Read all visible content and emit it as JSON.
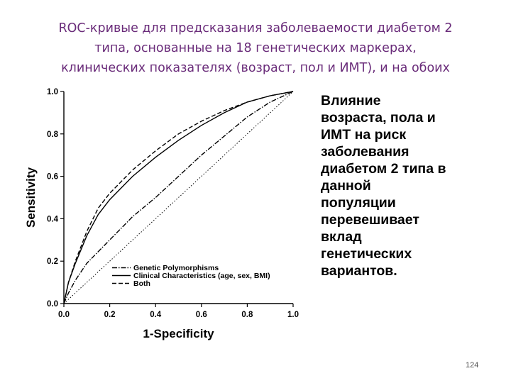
{
  "title": {
    "lines": [
      "ROC-кривые для предсказания заболеваемости диабетом 2",
      "типа, основанные на 18 генетических маркерах,",
      "клинических показателях (возраст, пол и ИМТ), и на обоих"
    ]
  },
  "side_text": {
    "lines": [
      "Влияние",
      "возраста, пола и",
      "ИМТ на риск",
      "заболевания",
      "диабетом 2 типа в",
      "данной",
      "популяции",
      "перевешивает",
      "вклад",
      "генетических",
      "вариантов."
    ]
  },
  "page_number": "124",
  "chart_data": {
    "type": "line",
    "xlabel": "1-Specificity",
    "ylabel": "Sensitivity",
    "xlim": [
      0,
      1
    ],
    "ylim": [
      0,
      1
    ],
    "x_ticks": [
      "0.0",
      "0.2",
      "0.4",
      "0.6",
      "0.8",
      "1.0"
    ],
    "y_ticks": [
      "0.0",
      "0.2",
      "0.4",
      "0.6",
      "0.8",
      "1.0"
    ],
    "grid": false,
    "legend_position": "bottom-left",
    "reference_line": true,
    "series": [
      {
        "name": "Genetic Polymorphisms",
        "style": "dash-dot",
        "x": [
          0,
          0.02,
          0.05,
          0.1,
          0.2,
          0.3,
          0.4,
          0.5,
          0.6,
          0.7,
          0.8,
          0.9,
          1.0
        ],
        "y": [
          0,
          0.05,
          0.11,
          0.19,
          0.3,
          0.41,
          0.5,
          0.6,
          0.7,
          0.79,
          0.88,
          0.95,
          1.0
        ]
      },
      {
        "name": "Clinical Characteristics (age, sex, BMI)",
        "style": "solid",
        "x": [
          0,
          0.02,
          0.05,
          0.1,
          0.15,
          0.2,
          0.3,
          0.4,
          0.5,
          0.6,
          0.7,
          0.8,
          0.9,
          1.0
        ],
        "y": [
          0,
          0.1,
          0.19,
          0.32,
          0.42,
          0.49,
          0.6,
          0.69,
          0.77,
          0.84,
          0.9,
          0.95,
          0.98,
          1.0
        ]
      },
      {
        "name": "Both",
        "style": "dashed",
        "x": [
          0,
          0.02,
          0.05,
          0.1,
          0.15,
          0.2,
          0.3,
          0.4,
          0.5,
          0.6,
          0.7,
          0.8,
          0.9,
          1.0
        ],
        "y": [
          0,
          0.1,
          0.2,
          0.34,
          0.45,
          0.52,
          0.63,
          0.72,
          0.8,
          0.86,
          0.91,
          0.95,
          0.98,
          1.0
        ]
      }
    ]
  }
}
